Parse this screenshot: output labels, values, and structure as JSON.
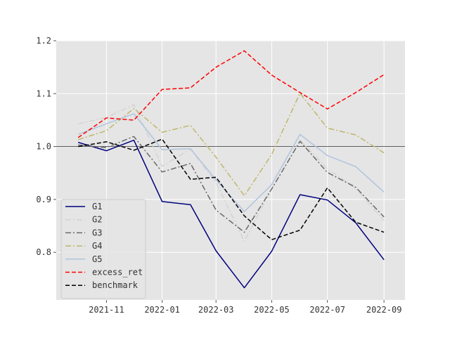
{
  "chart_data": {
    "type": "line",
    "x": [
      "2021-10-01",
      "2021-11-01",
      "2021-12-01",
      "2022-01-01",
      "2022-02-01",
      "2022-03-01",
      "2022-04-01",
      "2022-05-01",
      "2022-06-01",
      "2022-07-01",
      "2022-08-01",
      "2022-09-01"
    ],
    "xticks": [
      "2021-11",
      "2022-01",
      "2022-03",
      "2022-05",
      "2022-07",
      "2022-09"
    ],
    "yticks": [
      "0.8",
      "0.9",
      "1.0",
      "1.1",
      "1.2"
    ],
    "ylim": [
      0.71,
      1.2
    ],
    "xlim": [
      "2021-09-07",
      "2022-09-24"
    ],
    "reference_line": 1.0,
    "grid": true,
    "legend_position": "lower-left",
    "background": "#e5e5e5",
    "series": [
      {
        "name": "G1",
        "color": "#00007f",
        "style": "solid",
        "values": [
          1.008,
          0.992,
          1.012,
          0.896,
          0.89,
          0.803,
          0.733,
          0.802,
          0.909,
          0.899,
          0.856,
          0.786
        ]
      },
      {
        "name": "G2",
        "color": "#d3d3d3",
        "style": "dashdot",
        "values": [
          1.043,
          1.055,
          1.079,
          0.963,
          0.995,
          0.932,
          0.821,
          0.92,
          1.012,
          0.958,
          0.921,
          0.86
        ]
      },
      {
        "name": "G3",
        "color": "#696969",
        "style": "dashdot",
        "values": [
          1.003,
          0.998,
          1.019,
          0.952,
          0.968,
          0.88,
          0.838,
          0.92,
          1.01,
          0.951,
          0.923,
          0.867
        ]
      },
      {
        "name": "G4",
        "color": "#bdb76b",
        "style": "dashdot",
        "values": [
          1.013,
          1.03,
          1.072,
          1.027,
          1.04,
          0.98,
          0.907,
          0.985,
          1.101,
          1.035,
          1.022,
          0.988
        ]
      },
      {
        "name": "G5",
        "color": "#b0c4de",
        "style": "solid",
        "values": [
          1.023,
          1.043,
          1.062,
          0.994,
          0.996,
          0.937,
          0.877,
          0.928,
          1.023,
          0.983,
          0.962,
          0.914
        ]
      },
      {
        "name": "excess_ret",
        "color": "#ff0000",
        "style": "dashed",
        "values": [
          1.017,
          1.054,
          1.05,
          1.108,
          1.111,
          1.15,
          1.181,
          1.135,
          1.102,
          1.071,
          1.102,
          1.136
        ]
      },
      {
        "name": "benchmark",
        "color": "#000000",
        "style": "dashed",
        "values": [
          1.0,
          1.009,
          0.993,
          1.014,
          0.938,
          0.942,
          0.869,
          0.824,
          0.842,
          0.922,
          0.857,
          0.838
        ]
      }
    ]
  }
}
